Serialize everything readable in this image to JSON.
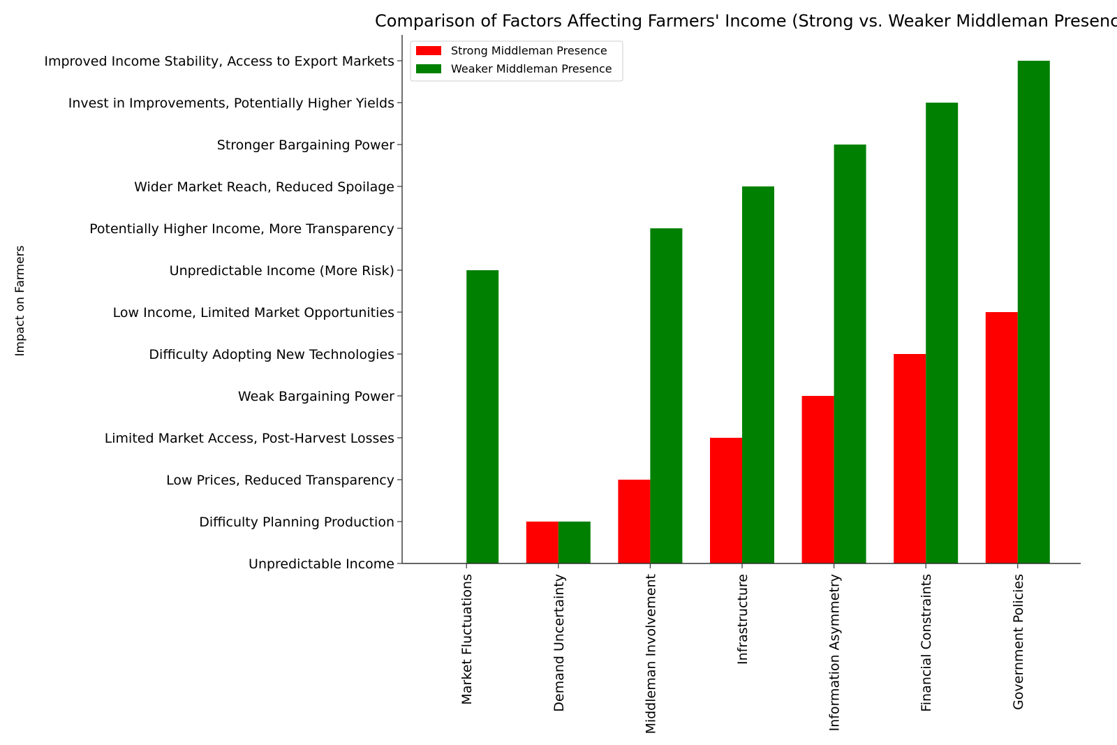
{
  "chart_data": {
    "type": "bar",
    "title": "Comparison of Factors Affecting Farmers' Income (Strong vs. Weaker Middleman Presence)",
    "xlabel": "",
    "ylabel": "Impact on Farmers",
    "categories": [
      "Market Fluctuations",
      "Demand Uncertainty",
      "Middleman Involvement",
      "Infrastructure",
      "Information Asymmetry",
      "Financial Constraints",
      "Government Policies"
    ],
    "y_tick_labels": [
      "Unpredictable Income",
      "Difficulty Planning Production",
      "Low Prices, Reduced Transparency",
      "Limited Market Access, Post-Harvest Losses",
      "Weak Bargaining Power",
      "Difficulty Adopting New Technologies",
      "Low Income, Limited Market Opportunities",
      "Unpredictable Income (More Risk)",
      "Potentially Higher Income, More Transparency",
      "Wider Market Reach, Reduced Spoilage",
      "Stronger Bargaining Power",
      "Invest in Improvements, Potentially Higher Yields",
      "Improved Income Stability, Access to Export Markets"
    ],
    "ylim": [
      0,
      12
    ],
    "series": [
      {
        "name": "Strong Middleman Presence",
        "color": "#ff0000",
        "values": [
          0,
          1,
          2,
          3,
          4,
          5,
          6
        ]
      },
      {
        "name": "Weaker Middleman Presence",
        "color": "#008000",
        "values": [
          7,
          1,
          8,
          9,
          10,
          11,
          12
        ]
      }
    ],
    "legend_position": "top-left",
    "grid": false
  }
}
